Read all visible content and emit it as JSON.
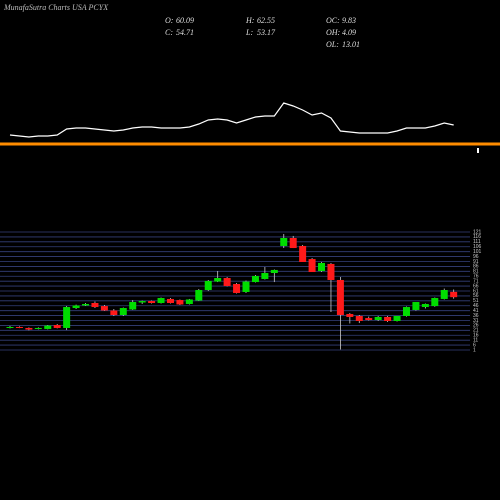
{
  "chart_data": {
    "type": "candlestick",
    "title": "MunafaSutra Charts USA PCYX",
    "stats": [
      {
        "label": "O:",
        "value": 60.09
      },
      {
        "label": "C:",
        "value": 54.71
      },
      {
        "label": "H:",
        "value": 62.55
      },
      {
        "label": "L:",
        "value": 53.17
      },
      {
        "label": "OC:",
        "value": 9.83
      },
      {
        "label": "OH:",
        "value": 4.09
      },
      {
        "label": "OL:",
        "value": 13.01
      }
    ],
    "up_color": "#00dd00",
    "down_color": "#ff1a1a",
    "indicator_color": "#ffffff",
    "candles": [
      [
        23.4,
        25.4,
        23,
        24.4
      ],
      [
        24.4,
        25,
        23.2,
        23.8
      ],
      [
        23.4,
        24,
        21,
        21.8
      ],
      [
        22.4,
        24,
        22,
        23.4
      ],
      [
        22.4,
        26.4,
        22,
        25.8
      ],
      [
        26.4,
        27.4,
        23,
        23.4
      ],
      [
        23.4,
        45.7,
        21.3,
        44.7
      ],
      [
        43.7,
        47.2,
        42.7,
        46.3
      ],
      [
        46.3,
        48.8,
        45.7,
        47.8
      ],
      [
        48.8,
        50.3,
        43.7,
        44.7
      ],
      [
        45.7,
        46.8,
        40.7,
        41.2
      ],
      [
        41.2,
        42.7,
        35.6,
        36.6
      ],
      [
        36.6,
        44.2,
        35.6,
        43.7
      ],
      [
        42.2,
        51.8,
        41.7,
        49.8
      ],
      [
        49.3,
        51.3,
        47.8,
        50.8
      ],
      [
        50.8,
        51.3,
        48.3,
        48.8
      ],
      [
        48.8,
        54.4,
        48.3,
        53.9
      ],
      [
        52.9,
        53.9,
        48.3,
        48.8
      ],
      [
        51.8,
        52.4,
        46.8,
        47.3
      ],
      [
        47.8,
        52.9,
        47.3,
        52.4
      ],
      [
        51.3,
        63,
        50.8,
        62
      ],
      [
        62,
        72.2,
        61,
        71.2
      ],
      [
        70.6,
        81.3,
        70.1,
        74.2
      ],
      [
        74.2,
        75.2,
        65.6,
        66.1
      ],
      [
        68.1,
        69.1,
        58.5,
        59
      ],
      [
        60,
        71.7,
        59,
        70.6
      ],
      [
        70.1,
        77.3,
        69.6,
        76.3
      ],
      [
        73.2,
        85.4,
        72.7,
        79.3
      ],
      [
        79.3,
        82.9,
        70.1,
        82.4
      ],
      [
        106.8,
        119,
        104.7,
        114.9
      ],
      [
        114.9,
        117,
        104.7,
        104.7
      ],
      [
        106.8,
        107.8,
        90.5,
        90.5
      ],
      [
        93.5,
        94.5,
        80.3,
        80.3
      ],
      [
        81.3,
        90.5,
        80.3,
        89.5
      ],
      [
        88.5,
        89.5,
        39.6,
        72.2
      ],
      [
        72.2,
        75.2,
        1.5,
        36.6
      ],
      [
        37.6,
        38.6,
        28,
        34.6
      ],
      [
        35.6,
        36.6,
        28.4,
        30.5
      ],
      [
        33.5,
        35,
        31,
        31.5
      ],
      [
        31.5,
        35.6,
        30.5,
        34.6
      ],
      [
        34.6,
        35.6,
        29.5,
        30.5
      ],
      [
        30.5,
        35.6,
        30,
        35.6
      ],
      [
        35.6,
        45.2,
        35,
        44.7
      ],
      [
        41.7,
        49.8,
        41,
        49.8
      ],
      [
        44.7,
        48.3,
        43.2,
        47.8
      ],
      [
        45.7,
        54.4,
        45,
        53.9
      ],
      [
        52.9,
        63.5,
        52.4,
        62
      ],
      [
        60.09,
        62.55,
        53.17,
        54.71
      ]
    ],
    "indicator": [
      15,
      14,
      13,
      14,
      14,
      15,
      21,
      22,
      22,
      21,
      20,
      19,
      20,
      22,
      23,
      23,
      22,
      22,
      22,
      23,
      26,
      30,
      31,
      30,
      27,
      30,
      33,
      34,
      34,
      47,
      44,
      40,
      35,
      37,
      32,
      19,
      18,
      17,
      17,
      17,
      17,
      19,
      22,
      22,
      22,
      24,
      27,
      25
    ],
    "indicator_ylim": [
      0,
      50
    ],
    "ylim": [
      1,
      121
    ],
    "yticks": [
      121,
      116,
      111,
      106,
      101,
      96,
      91,
      86,
      81,
      76,
      71,
      66,
      61,
      56,
      51,
      46,
      41,
      36,
      31,
      26,
      21,
      16,
      11,
      6,
      1
    ],
    "grid": true
  }
}
